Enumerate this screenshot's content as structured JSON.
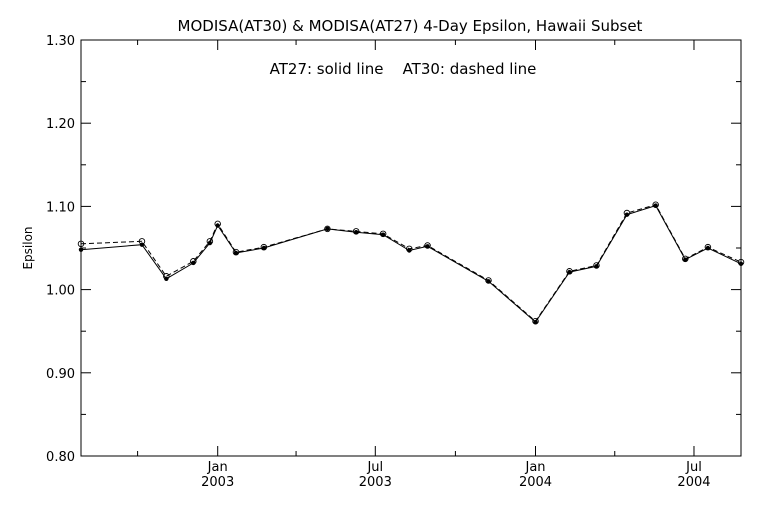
{
  "chart_data": {
    "type": "line",
    "title": "MODISA(AT30) & MODISA(AT27) 4-Day Epsilon, Hawaii Subset",
    "annotation": "AT27: solid line    AT30: dashed line",
    "ylabel": "Epsilon",
    "xlabel": "",
    "ylim": [
      0.8,
      1.3
    ],
    "xlim": [
      "2002-07-28",
      "2004-08-24"
    ],
    "y_ticks": [
      "0.80",
      "0.90",
      "1.00",
      "1.10",
      "1.20",
      "1.30"
    ],
    "x_ticks": [
      {
        "date": "2003-01-01",
        "month": "Jan",
        "year": "2003"
      },
      {
        "date": "2003-07-01",
        "month": "Jul",
        "year": "2003"
      },
      {
        "date": "2004-01-01",
        "month": "Jan",
        "year": "2004"
      },
      {
        "date": "2004-07-01",
        "month": "Jul",
        "year": "2004"
      }
    ],
    "x_minor_ticks": [
      "2002-10-01",
      "2003-04-01",
      "2003-10-01",
      "2004-04-01"
    ],
    "x": [
      "2002-07-28",
      "2002-10-06",
      "2002-11-03",
      "2002-12-04",
      "2002-12-23",
      "2003-01-01",
      "2003-01-22",
      "2003-02-23",
      "2003-05-07",
      "2003-06-09",
      "2003-07-10",
      "2003-08-09",
      "2003-08-30",
      "2003-11-08",
      "2004-01-01",
      "2004-02-09",
      "2004-03-11",
      "2004-04-15",
      "2004-05-18",
      "2004-06-21",
      "2004-07-17",
      "2004-08-24"
    ],
    "series": [
      {
        "name": "AT27",
        "style": "solid",
        "values": [
          1.048,
          1.054,
          1.013,
          1.032,
          1.056,
          1.077,
          1.044,
          1.05,
          1.073,
          1.069,
          1.066,
          1.047,
          1.052,
          1.01,
          0.961,
          1.021,
          1.028,
          1.09,
          1.101,
          1.036,
          1.05,
          1.031
        ]
      },
      {
        "name": "AT30",
        "style": "dashed",
        "values": [
          1.055,
          1.058,
          1.016,
          1.034,
          1.058,
          1.079,
          1.045,
          1.051,
          1.073,
          1.07,
          1.067,
          1.049,
          1.053,
          1.011,
          0.962,
          1.022,
          1.029,
          1.092,
          1.102,
          1.037,
          1.051,
          1.033
        ]
      }
    ],
    "grid": false,
    "line_color": "#000000"
  }
}
